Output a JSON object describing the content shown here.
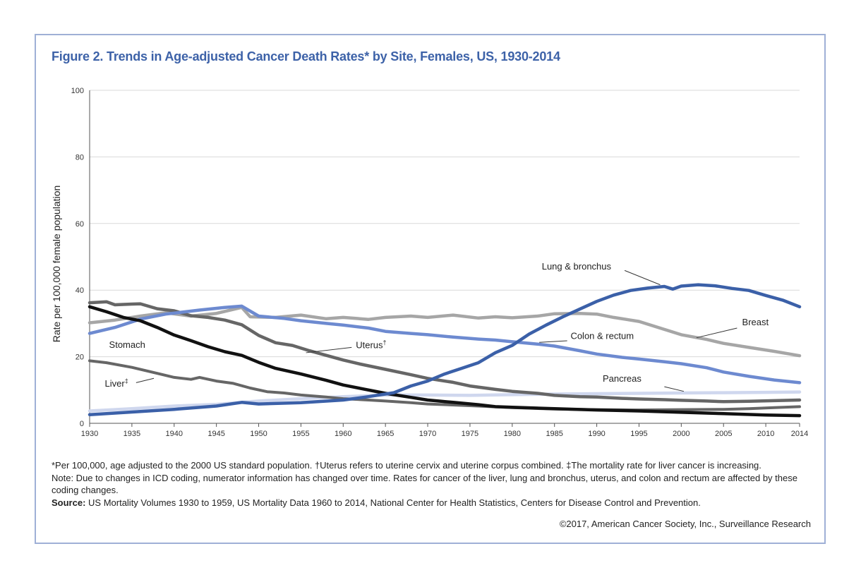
{
  "title": "Figure 2. Trends in Age-adjusted Cancer Death Rates* by Site, Females, US, 1930-2014",
  "colors": {
    "frame": "#9fb0d6",
    "title": "#3d62a8",
    "dark_blue": "#3b60a8",
    "mid_blue": "#6d8ad0",
    "light_blue": "#cfd7ee",
    "black": "#111111",
    "dark_gray": "#666666",
    "mid_gray": "#a6a6a6",
    "light_gray": "#c8c8c8"
  },
  "chart_data": {
    "type": "line",
    "ylabel": "Rate per 100,000 female population",
    "xlabel": "",
    "xlim": [
      1930,
      2014
    ],
    "ylim": [
      0,
      100
    ],
    "x_ticks": [
      1930,
      1935,
      1940,
      1945,
      1950,
      1955,
      1960,
      1965,
      1970,
      1975,
      1980,
      1985,
      1990,
      1995,
      2000,
      2005,
      2010,
      2014
    ],
    "y_ticks": [
      0,
      20,
      40,
      60,
      80,
      100
    ],
    "grid": "horizontal",
    "series": [
      {
        "name": "Breast",
        "color_key": "mid_gray",
        "width": 4.5,
        "points": [
          [
            1930,
            30.2
          ],
          [
            1933,
            31.0
          ],
          [
            1936,
            32.2
          ],
          [
            1939,
            33.2
          ],
          [
            1942,
            32.2
          ],
          [
            1945,
            33.0
          ],
          [
            1948,
            34.8
          ],
          [
            1949,
            32.0
          ],
          [
            1952,
            31.8
          ],
          [
            1955,
            32.5
          ],
          [
            1958,
            31.4
          ],
          [
            1960,
            31.8
          ],
          [
            1963,
            31.2
          ],
          [
            1965,
            31.8
          ],
          [
            1968,
            32.2
          ],
          [
            1970,
            31.8
          ],
          [
            1973,
            32.5
          ],
          [
            1976,
            31.6
          ],
          [
            1978,
            32.0
          ],
          [
            1980,
            31.7
          ],
          [
            1983,
            32.2
          ],
          [
            1985,
            32.9
          ],
          [
            1988,
            33.0
          ],
          [
            1990,
            32.8
          ],
          [
            1992,
            31.8
          ],
          [
            1995,
            30.6
          ],
          [
            1997,
            29.0
          ],
          [
            2000,
            26.6
          ],
          [
            2003,
            25.2
          ],
          [
            2005,
            24.0
          ],
          [
            2008,
            22.8
          ],
          [
            2011,
            21.6
          ],
          [
            2014,
            20.3
          ]
        ],
        "label": {
          "text": "Breast",
          "x": 2007.2,
          "y": 29.4
        }
      },
      {
        "name": "Lung & bronchus",
        "color_key": "dark_blue",
        "width": 4.5,
        "points": [
          [
            1930,
            2.6
          ],
          [
            1935,
            3.4
          ],
          [
            1940,
            4.2
          ],
          [
            1945,
            5.2
          ],
          [
            1948,
            6.3
          ],
          [
            1950,
            5.8
          ],
          [
            1955,
            6.2
          ],
          [
            1960,
            7.0
          ],
          [
            1963,
            8.0
          ],
          [
            1966,
            9.2
          ],
          [
            1968,
            11.2
          ],
          [
            1970,
            12.7
          ],
          [
            1972,
            14.8
          ],
          [
            1974,
            16.5
          ],
          [
            1976,
            18.2
          ],
          [
            1978,
            21.2
          ],
          [
            1980,
            23.4
          ],
          [
            1982,
            26.8
          ],
          [
            1984,
            29.5
          ],
          [
            1986,
            32.0
          ],
          [
            1988,
            34.3
          ],
          [
            1990,
            36.6
          ],
          [
            1992,
            38.5
          ],
          [
            1994,
            39.9
          ],
          [
            1996,
            40.6
          ],
          [
            1998,
            41.1
          ],
          [
            1999,
            40.3
          ],
          [
            2000,
            41.2
          ],
          [
            2002,
            41.6
          ],
          [
            2004,
            41.3
          ],
          [
            2006,
            40.5
          ],
          [
            2008,
            39.9
          ],
          [
            2010,
            38.4
          ],
          [
            2012,
            37.0
          ],
          [
            2014,
            35.0
          ]
        ],
        "label": {
          "text": "Lung & bronchus",
          "x": 1983.5,
          "y": 46.2
        }
      },
      {
        "name": "Colon & rectum",
        "color_key": "mid_blue",
        "width": 4.5,
        "points": [
          [
            1930,
            27.0
          ],
          [
            1933,
            28.8
          ],
          [
            1936,
            31.3
          ],
          [
            1939,
            32.8
          ],
          [
            1941,
            33.4
          ],
          [
            1943,
            34.0
          ],
          [
            1946,
            34.8
          ],
          [
            1948,
            35.2
          ],
          [
            1950,
            32.2
          ],
          [
            1953,
            31.5
          ],
          [
            1955,
            30.8
          ],
          [
            1958,
            30.0
          ],
          [
            1960,
            29.5
          ],
          [
            1963,
            28.6
          ],
          [
            1965,
            27.6
          ],
          [
            1968,
            27.0
          ],
          [
            1970,
            26.6
          ],
          [
            1973,
            25.9
          ],
          [
            1976,
            25.3
          ],
          [
            1978,
            25.0
          ],
          [
            1980,
            24.5
          ],
          [
            1983,
            23.8
          ],
          [
            1985,
            23.2
          ],
          [
            1988,
            21.8
          ],
          [
            1990,
            20.8
          ],
          [
            1993,
            19.8
          ],
          [
            1995,
            19.3
          ],
          [
            1998,
            18.5
          ],
          [
            2000,
            17.9
          ],
          [
            2003,
            16.7
          ],
          [
            2005,
            15.4
          ],
          [
            2008,
            14.1
          ],
          [
            2011,
            13.0
          ],
          [
            2014,
            12.2
          ]
        ],
        "label": {
          "text": "Colon & rectum",
          "x": 1986.9,
          "y": 25.3
        }
      },
      {
        "name": "Stomach",
        "color_key": "black",
        "width": 4.5,
        "points": [
          [
            1930,
            35.0
          ],
          [
            1932,
            33.5
          ],
          [
            1934,
            31.8
          ],
          [
            1936,
            30.8
          ],
          [
            1938,
            28.8
          ],
          [
            1940,
            26.5
          ],
          [
            1942,
            24.8
          ],
          [
            1944,
            23.0
          ],
          [
            1946,
            21.5
          ],
          [
            1948,
            20.4
          ],
          [
            1950,
            18.3
          ],
          [
            1952,
            16.5
          ],
          [
            1955,
            14.8
          ],
          [
            1958,
            12.9
          ],
          [
            1960,
            11.5
          ],
          [
            1962,
            10.5
          ],
          [
            1965,
            9.0
          ],
          [
            1968,
            7.8
          ],
          [
            1970,
            7.0
          ],
          [
            1973,
            6.3
          ],
          [
            1976,
            5.6
          ],
          [
            1978,
            5.0
          ],
          [
            1980,
            4.8
          ],
          [
            1985,
            4.4
          ],
          [
            1990,
            4.0
          ],
          [
            1995,
            3.7
          ],
          [
            2000,
            3.3
          ],
          [
            2005,
            2.9
          ],
          [
            2010,
            2.5
          ],
          [
            2014,
            2.3
          ]
        ],
        "label": {
          "text": "Stomach",
          "x": 1932.3,
          "y": 22.7
        }
      },
      {
        "name": "Uterus",
        "color_key": "dark_gray",
        "width": 4.5,
        "points": [
          [
            1930,
            36.2
          ],
          [
            1932,
            36.5
          ],
          [
            1933,
            35.6
          ],
          [
            1935,
            35.8
          ],
          [
            1936,
            35.9
          ],
          [
            1938,
            34.4
          ],
          [
            1940,
            33.8
          ],
          [
            1942,
            32.3
          ],
          [
            1944,
            31.8
          ],
          [
            1946,
            31.0
          ],
          [
            1948,
            29.6
          ],
          [
            1950,
            26.4
          ],
          [
            1952,
            24.2
          ],
          [
            1954,
            23.4
          ],
          [
            1956,
            21.8
          ],
          [
            1958,
            20.4
          ],
          [
            1960,
            19.0
          ],
          [
            1962,
            17.8
          ],
          [
            1965,
            16.2
          ],
          [
            1968,
            14.6
          ],
          [
            1970,
            13.5
          ],
          [
            1973,
            12.3
          ],
          [
            1975,
            11.2
          ],
          [
            1978,
            10.2
          ],
          [
            1980,
            9.6
          ],
          [
            1983,
            9.0
          ],
          [
            1985,
            8.4
          ],
          [
            1988,
            8.0
          ],
          [
            1990,
            7.9
          ],
          [
            1993,
            7.5
          ],
          [
            1995,
            7.3
          ],
          [
            1998,
            7.1
          ],
          [
            2000,
            6.9
          ],
          [
            2003,
            6.7
          ],
          [
            2005,
            6.5
          ],
          [
            2008,
            6.6
          ],
          [
            2011,
            6.8
          ],
          [
            2014,
            7.0
          ]
        ],
        "label": {
          "text": "Uterus",
          "x": 1961.5,
          "y": 22.6,
          "sup": "†"
        }
      },
      {
        "name": "Liver",
        "color_key": "dark_gray",
        "width": 4.0,
        "points": [
          [
            1930,
            18.8
          ],
          [
            1932,
            18.2
          ],
          [
            1935,
            16.8
          ],
          [
            1938,
            15.0
          ],
          [
            1940,
            13.8
          ],
          [
            1942,
            13.2
          ],
          [
            1943,
            13.8
          ],
          [
            1945,
            12.7
          ],
          [
            1947,
            12.0
          ],
          [
            1949,
            10.6
          ],
          [
            1951,
            9.5
          ],
          [
            1953,
            9.1
          ],
          [
            1955,
            8.5
          ],
          [
            1958,
            7.9
          ],
          [
            1960,
            7.4
          ],
          [
            1963,
            7.0
          ],
          [
            1965,
            6.7
          ],
          [
            1968,
            6.2
          ],
          [
            1970,
            5.8
          ],
          [
            1975,
            5.3
          ],
          [
            1980,
            4.7
          ],
          [
            1985,
            4.3
          ],
          [
            1990,
            4.1
          ],
          [
            1995,
            4.0
          ],
          [
            2000,
            4.1
          ],
          [
            2005,
            4.2
          ],
          [
            2008,
            4.4
          ],
          [
            2011,
            4.7
          ],
          [
            2014,
            5.0
          ]
        ],
        "label": {
          "text": "Liver",
          "x": 1931.8,
          "y": 11.0,
          "sup": "‡"
        }
      },
      {
        "name": "Pancreas",
        "color_key": "light_blue",
        "width": 4.5,
        "points": [
          [
            1930,
            3.7
          ],
          [
            1935,
            4.4
          ],
          [
            1940,
            5.2
          ],
          [
            1945,
            5.7
          ],
          [
            1950,
            6.7
          ],
          [
            1955,
            7.4
          ],
          [
            1960,
            8.0
          ],
          [
            1965,
            8.5
          ],
          [
            1970,
            8.5
          ],
          [
            1975,
            8.4
          ],
          [
            1980,
            8.6
          ],
          [
            1985,
            8.8
          ],
          [
            1990,
            8.9
          ],
          [
            1995,
            9.0
          ],
          [
            2000,
            9.1
          ],
          [
            2005,
            9.2
          ],
          [
            2010,
            9.3
          ],
          [
            2014,
            9.4
          ]
        ],
        "label": {
          "text": "Pancreas",
          "x": 1990.7,
          "y": 12.5
        }
      }
    ],
    "label_leaders": [
      {
        "series": "Lung & bronchus",
        "from": [
          1993.3,
          45.9
        ],
        "to": [
          1997.5,
          41.6
        ]
      },
      {
        "series": "Breast",
        "from": [
          2006.6,
          28.6
        ],
        "to": [
          2001.8,
          25.7
        ]
      },
      {
        "series": "Colon & rectum",
        "from": [
          1986.5,
          24.8
        ],
        "to": [
          1983.2,
          24.3
        ]
      },
      {
        "series": "Uterus",
        "from": [
          1961.0,
          22.8
        ],
        "to": [
          1955.6,
          21.2
        ]
      },
      {
        "series": "Liver",
        "from": [
          1935.5,
          12.2
        ],
        "to": [
          1937.6,
          13.5
        ]
      },
      {
        "series": "Pancreas",
        "from": [
          1998.0,
          11.0
        ],
        "to": [
          2000.3,
          9.6
        ]
      }
    ]
  },
  "footnotes": {
    "line1": "*Per 100,000, age adjusted to the 2000 US standard population. †Uterus refers to uterine cervix and uterine corpus combined. ‡The mortality rate for liver cancer is increasing.",
    "note": "Note: Due to changes in ICD coding, numerator information has changed over time. Rates for cancer of the liver, lung and bronchus, uterus, and colon and rectum are affected by these coding changes.",
    "source_label": "Source:",
    "source_text": " US Mortality Volumes 1930 to 1959, US Mortality Data 1960 to 2014, National Center for Health Statistics, Centers for Disease Control and Prevention.",
    "copyright": "©2017, American Cancer Society, Inc., Surveillance Research"
  }
}
